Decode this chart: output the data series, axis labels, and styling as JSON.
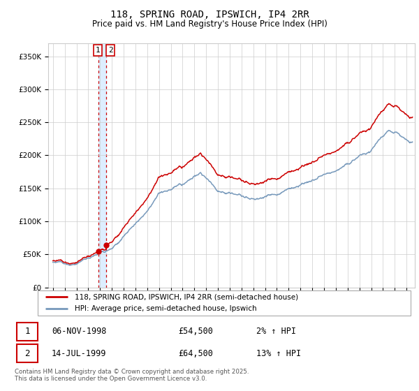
{
  "title": "118, SPRING ROAD, IPSWICH, IP4 2RR",
  "subtitle": "Price paid vs. HM Land Registry's House Price Index (HPI)",
  "legend_label_red": "118, SPRING ROAD, IPSWICH, IP4 2RR (semi-detached house)",
  "legend_label_blue": "HPI: Average price, semi-detached house, Ipswich",
  "footer": "Contains HM Land Registry data © Crown copyright and database right 2025.\nThis data is licensed under the Open Government Licence v3.0.",
  "transaction1_date": "06-NOV-1998",
  "transaction1_price": "£54,500",
  "transaction1_hpi": "2% ↑ HPI",
  "transaction2_date": "14-JUL-1999",
  "transaction2_price": "£64,500",
  "transaction2_hpi": "13% ↑ HPI",
  "sale1_year": 1998.85,
  "sale1_price": 54500,
  "sale2_year": 1999.54,
  "sale2_price": 64500,
  "ylim": [
    0,
    370000
  ],
  "ylabel_ticks": [
    0,
    50000,
    100000,
    150000,
    200000,
    250000,
    300000,
    350000
  ],
  "ylabel_labels": [
    "£0",
    "£50K",
    "£100K",
    "£150K",
    "£200K",
    "£250K",
    "£300K",
    "£350K"
  ],
  "xlim_left": 1994.6,
  "xlim_right": 2025.7,
  "background_color": "#ffffff",
  "grid_color": "#cccccc",
  "red_color": "#cc0000",
  "blue_color": "#7799bb",
  "vband_color": "#ddeeff",
  "title_fontsize": 10,
  "subtitle_fontsize": 8.5
}
